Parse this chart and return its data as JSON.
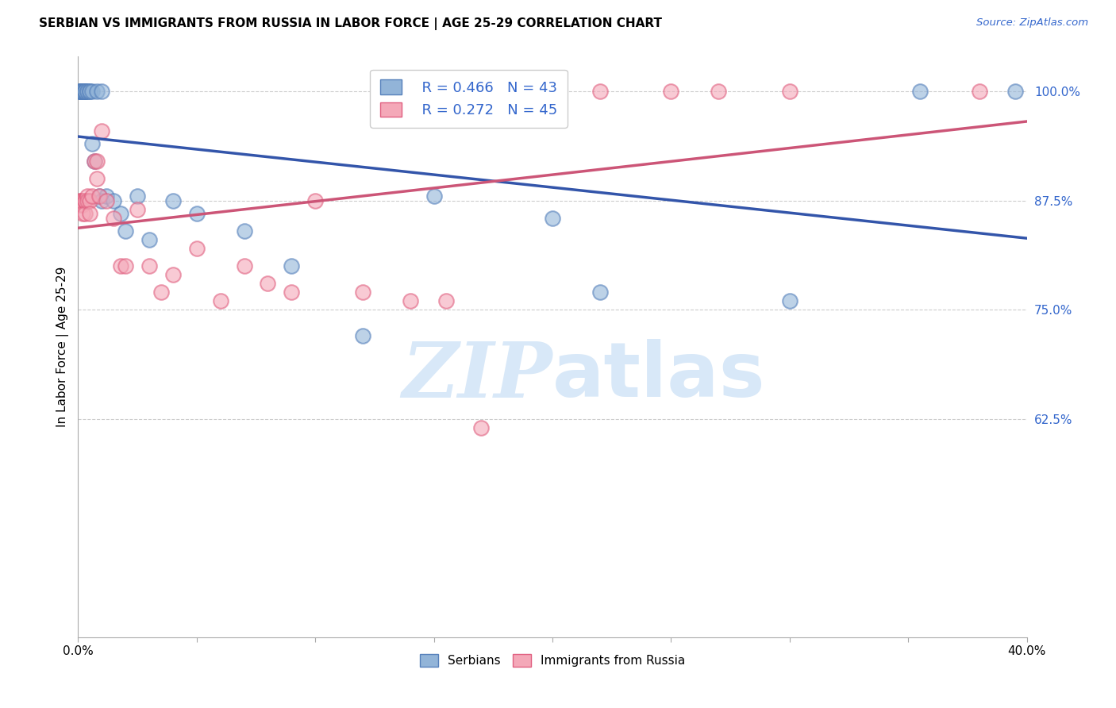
{
  "title": "SERBIAN VS IMMIGRANTS FROM RUSSIA IN LABOR FORCE | AGE 25-29 CORRELATION CHART",
  "source": "Source: ZipAtlas.com",
  "ylabel": "In Labor Force | Age 25-29",
  "xlim": [
    0.0,
    0.4
  ],
  "ylim": [
    0.375,
    1.04
  ],
  "yticks": [
    1.0,
    0.875,
    0.75,
    0.625
  ],
  "ytick_labels": [
    "100.0%",
    "87.5%",
    "75.0%",
    "62.5%"
  ],
  "xticks": [
    0.0,
    0.05,
    0.1,
    0.15,
    0.2,
    0.25,
    0.3,
    0.35,
    0.4
  ],
  "xtick_labels": [
    "0.0%",
    "",
    "",
    "",
    "",
    "",
    "",
    "",
    "40.0%"
  ],
  "serbian_R": 0.466,
  "serbian_N": 43,
  "russia_R": 0.272,
  "russia_N": 45,
  "serbian_color": "#92B4D8",
  "russia_color": "#F4A8B8",
  "serbian_edge": "#5580BB",
  "russia_edge": "#E06080",
  "trend_blue": "#3355AA",
  "trend_pink": "#CC5577",
  "watermark_color": "#D8E8F8",
  "legend_label_serbian": "Serbians",
  "legend_label_russia": "Immigrants from Russia",
  "serbian_x": [
    0.001,
    0.001,
    0.001,
    0.001,
    0.001,
    0.002,
    0.002,
    0.002,
    0.002,
    0.002,
    0.002,
    0.003,
    0.003,
    0.003,
    0.003,
    0.004,
    0.004,
    0.005,
    0.005,
    0.006,
    0.006,
    0.007,
    0.008,
    0.009,
    0.01,
    0.01,
    0.012,
    0.015,
    0.018,
    0.02,
    0.025,
    0.03,
    0.04,
    0.05,
    0.07,
    0.09,
    0.12,
    0.15,
    0.2,
    0.22,
    0.3,
    0.355,
    0.395
  ],
  "serbian_y": [
    1.0,
    1.0,
    1.0,
    1.0,
    1.0,
    1.0,
    1.0,
    1.0,
    1.0,
    1.0,
    1.0,
    1.0,
    1.0,
    1.0,
    1.0,
    1.0,
    1.0,
    1.0,
    1.0,
    0.94,
    1.0,
    0.92,
    1.0,
    0.88,
    1.0,
    0.875,
    0.88,
    0.875,
    0.86,
    0.84,
    0.88,
    0.83,
    0.875,
    0.86,
    0.84,
    0.8,
    0.72,
    0.88,
    0.855,
    0.77,
    0.76,
    1.0,
    1.0
  ],
  "russia_x": [
    0.001,
    0.001,
    0.001,
    0.002,
    0.002,
    0.002,
    0.002,
    0.003,
    0.003,
    0.003,
    0.004,
    0.004,
    0.005,
    0.005,
    0.006,
    0.007,
    0.008,
    0.008,
    0.009,
    0.01,
    0.012,
    0.015,
    0.018,
    0.02,
    0.025,
    0.03,
    0.035,
    0.04,
    0.05,
    0.06,
    0.07,
    0.08,
    0.09,
    0.1,
    0.12,
    0.14,
    0.155,
    0.17,
    0.185,
    0.2,
    0.22,
    0.25,
    0.27,
    0.3,
    0.38
  ],
  "russia_y": [
    0.875,
    0.875,
    0.87,
    0.875,
    0.875,
    0.87,
    0.86,
    0.875,
    0.875,
    0.86,
    0.88,
    0.875,
    0.875,
    0.86,
    0.88,
    0.92,
    0.92,
    0.9,
    0.88,
    0.955,
    0.875,
    0.855,
    0.8,
    0.8,
    0.865,
    0.8,
    0.77,
    0.79,
    0.82,
    0.76,
    0.8,
    0.78,
    0.77,
    0.875,
    0.77,
    0.76,
    0.76,
    0.615,
    1.0,
    1.0,
    1.0,
    1.0,
    1.0,
    1.0,
    1.0
  ]
}
